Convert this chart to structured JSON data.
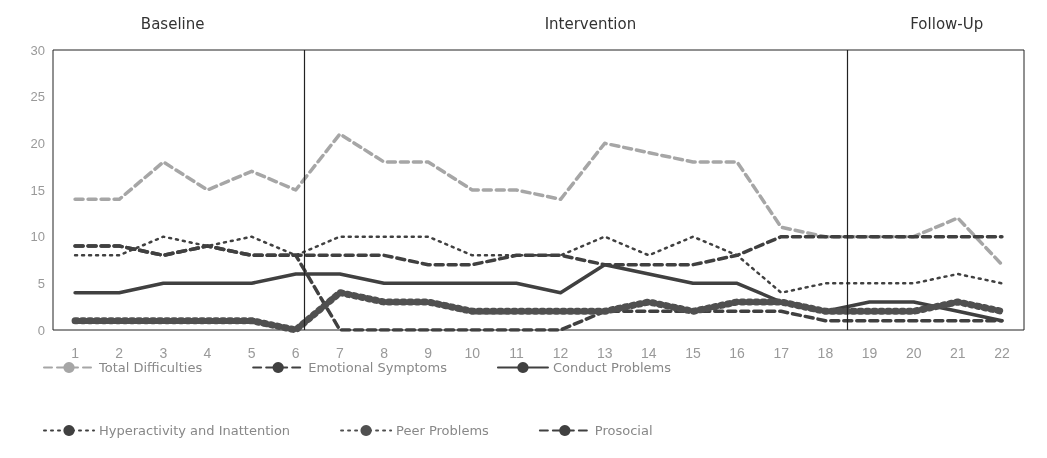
{
  "chart_data": {
    "type": "line",
    "annotations": [
      "Baseline",
      "Intervention",
      "Follow-Up"
    ],
    "x": [
      1,
      2,
      3,
      4,
      5,
      6,
      7,
      8,
      9,
      10,
      11,
      12,
      13,
      14,
      15,
      16,
      17,
      18,
      19,
      20,
      21,
      22
    ],
    "xlim": [
      0.5,
      22.5
    ],
    "xticks": [
      1,
      2,
      3,
      4,
      5,
      6,
      7,
      8,
      9,
      10,
      11,
      12,
      13,
      14,
      15,
      16,
      17,
      18,
      19,
      20,
      21,
      22
    ],
    "ylim": [
      0,
      30
    ],
    "yticks": [
      0,
      5,
      10,
      15,
      20,
      25,
      30
    ],
    "grid": false,
    "legend": "bottom",
    "marker": "none",
    "ref_lines": [
      {
        "axis": "x",
        "value": 6.2,
        "color": "#222222"
      },
      {
        "axis": "x",
        "value": 18.5,
        "color": "#222222"
      }
    ],
    "series": [
      {
        "name": "Total Difficulties",
        "color": "#a6a6a6",
        "line_style": "dashed",
        "values": [
          14,
          14,
          18,
          15,
          17,
          15,
          21,
          18,
          18,
          15,
          15,
          14,
          20,
          19,
          18,
          18,
          11,
          10,
          10,
          10,
          12,
          7
        ]
      },
      {
        "name": "Emotional Symptoms",
        "color": "#404040",
        "line_style": "dashed",
        "values": [
          9,
          9,
          8,
          9,
          8,
          8,
          0,
          0,
          0,
          0,
          0,
          0,
          2,
          2,
          2,
          2,
          2,
          1,
          1,
          1,
          1,
          1
        ]
      },
      {
        "name": "Conduct Problems",
        "color": "#404040",
        "line_style": "solid",
        "values": [
          4,
          4,
          5,
          5,
          5,
          6,
          6,
          5,
          5,
          5,
          5,
          4,
          7,
          6,
          5,
          5,
          3,
          2,
          3,
          3,
          2,
          1
        ]
      },
      {
        "name": "Hyperactivity and Inattention",
        "color": "#404040",
        "line_style": "dotted",
        "values": [
          8,
          8,
          10,
          9,
          10,
          8,
          10,
          10,
          10,
          8,
          8,
          8,
          10,
          8,
          10,
          8,
          4,
          5,
          5,
          5,
          6,
          5
        ]
      },
      {
        "name": "Peer Problems",
        "color": "#505050",
        "line_style": "dotted",
        "values": [
          1,
          1,
          1,
          1,
          1,
          0,
          4,
          3,
          3,
          2,
          2,
          2,
          2,
          3,
          2,
          3,
          3,
          2,
          2,
          2,
          3,
          2
        ]
      },
      {
        "name": "Prosocial",
        "color": "#404040",
        "line_style": "dashed",
        "values": [
          9,
          9,
          8,
          9,
          8,
          8,
          8,
          8,
          7,
          7,
          8,
          8,
          7,
          7,
          7,
          8,
          10,
          10,
          10,
          10,
          10,
          10
        ]
      }
    ]
  }
}
